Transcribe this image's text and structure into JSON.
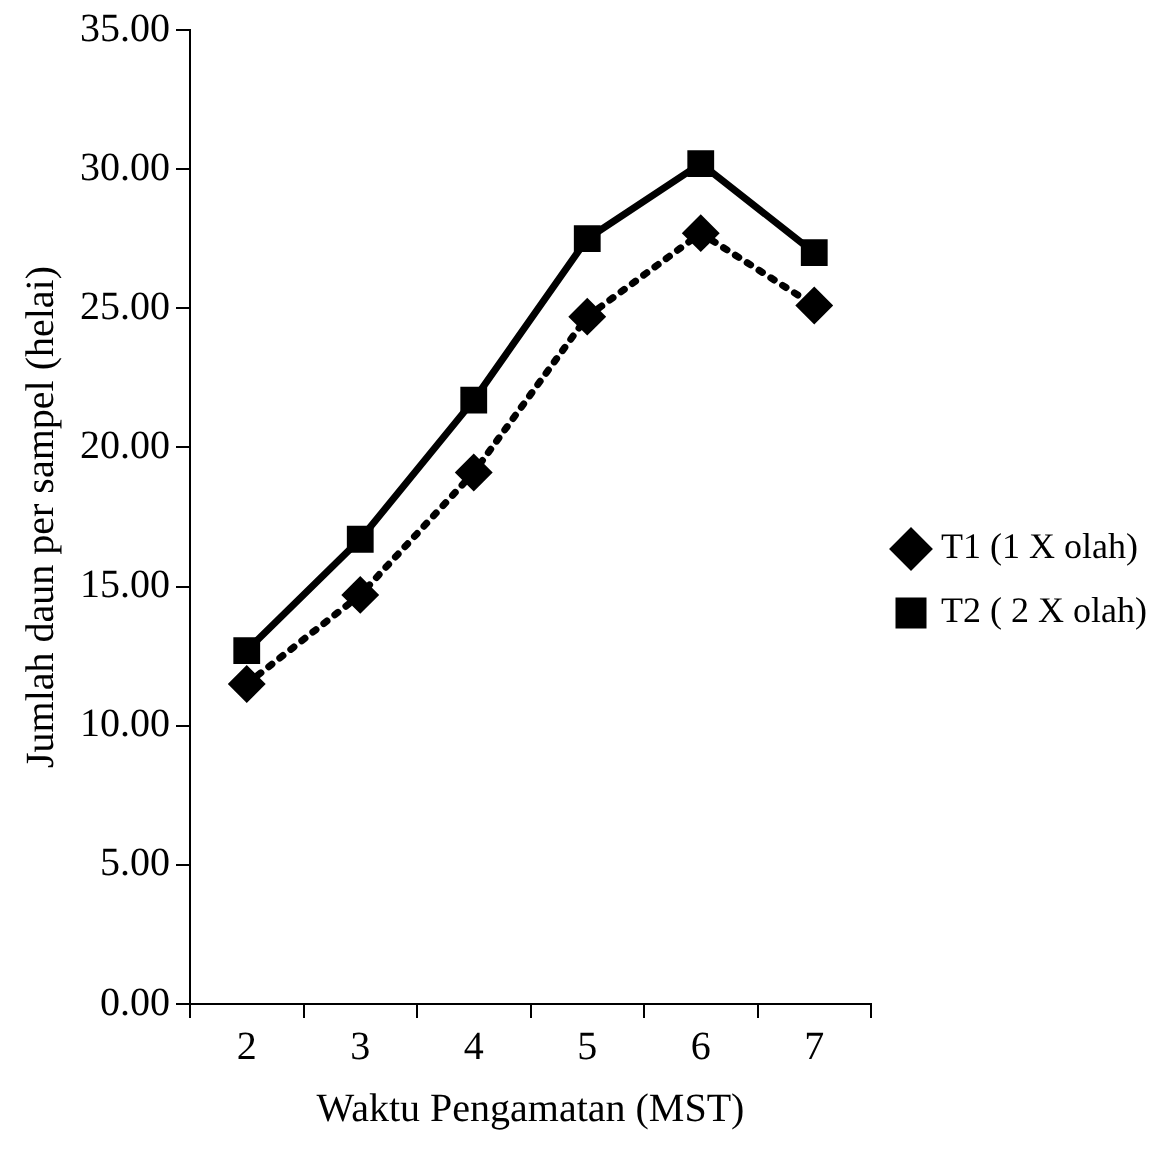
{
  "chart_data": {
    "type": "line",
    "xlabel": "Waktu Pengamatan (MST)",
    "ylabel": "Jumlah daun per sampel (helai)",
    "categories": [
      "2",
      "3",
      "4",
      "5",
      "6",
      "7"
    ],
    "series": [
      {
        "name": "T1 (1 X olah)",
        "color": "#000000",
        "values": [
          11.5,
          14.7,
          19.1,
          24.7,
          27.7,
          25.1
        ],
        "marker": "diamond",
        "line_style": "dotted"
      },
      {
        "name": "T2 ( 2 X olah)",
        "color": "#000000",
        "values": [
          12.7,
          16.7,
          21.7,
          27.5,
          30.2,
          27.0
        ],
        "marker": "square",
        "line_style": "solid"
      }
    ],
    "ylim": [
      0,
      35
    ],
    "yticks": [
      {
        "value": 0,
        "label": "0.00"
      },
      {
        "value": 5,
        "label": "5.00"
      },
      {
        "value": 10,
        "label": "10.00"
      },
      {
        "value": 15,
        "label": "15.00"
      },
      {
        "value": 20,
        "label": "20.00"
      },
      {
        "value": 25,
        "label": "25.00"
      },
      {
        "value": 30,
        "label": "30.00"
      },
      {
        "value": 35,
        "label": "35.00"
      }
    ],
    "grid": false,
    "legend": "right"
  }
}
